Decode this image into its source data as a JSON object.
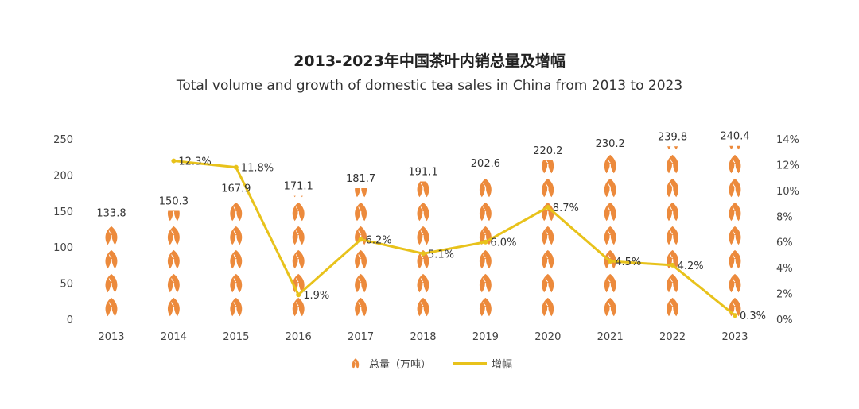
{
  "chart_data": {
    "type": "bar",
    "title": "2013-2023年中国茶叶内销总量及增幅",
    "subtitle": "Total volume and growth of domestic tea sales in China from 2013 to 2023",
    "categories": [
      "2013",
      "2014",
      "2015",
      "2016",
      "2017",
      "2018",
      "2019",
      "2020",
      "2021",
      "2022",
      "2023"
    ],
    "series": [
      {
        "name": "总量（万吨）",
        "type": "pictorial-bar",
        "axis": "left",
        "values": [
          133.8,
          150.3,
          167.9,
          171.1,
          181.7,
          191.1,
          202.6,
          220.2,
          230.2,
          239.8,
          240.4
        ],
        "color": "#ec8a3c",
        "icon": "tea-leaf-icon"
      },
      {
        "name": "增幅",
        "type": "line",
        "axis": "right",
        "values": [
          null,
          12.3,
          11.8,
          1.9,
          6.2,
          5.1,
          6.0,
          8.7,
          4.5,
          4.2,
          0.3
        ],
        "labels": [
          "",
          "12.3%",
          "11.8%",
          "1.9%",
          "6.2%",
          "5.1%",
          "6.0%",
          "8.7%",
          "4.5%",
          "4.2%",
          "0.3%"
        ],
        "color": "#e8c21b"
      }
    ],
    "y_left": {
      "ticks": [
        "0",
        "50",
        "100",
        "150",
        "200",
        "250"
      ],
      "ylim": [
        0,
        250
      ]
    },
    "y_right": {
      "ticks": [
        "0%",
        "2%",
        "4%",
        "6%",
        "8%",
        "10%",
        "12%",
        "14%"
      ],
      "ylim": [
        0,
        14
      ]
    },
    "grid": false,
    "legend_position": "bottom"
  }
}
